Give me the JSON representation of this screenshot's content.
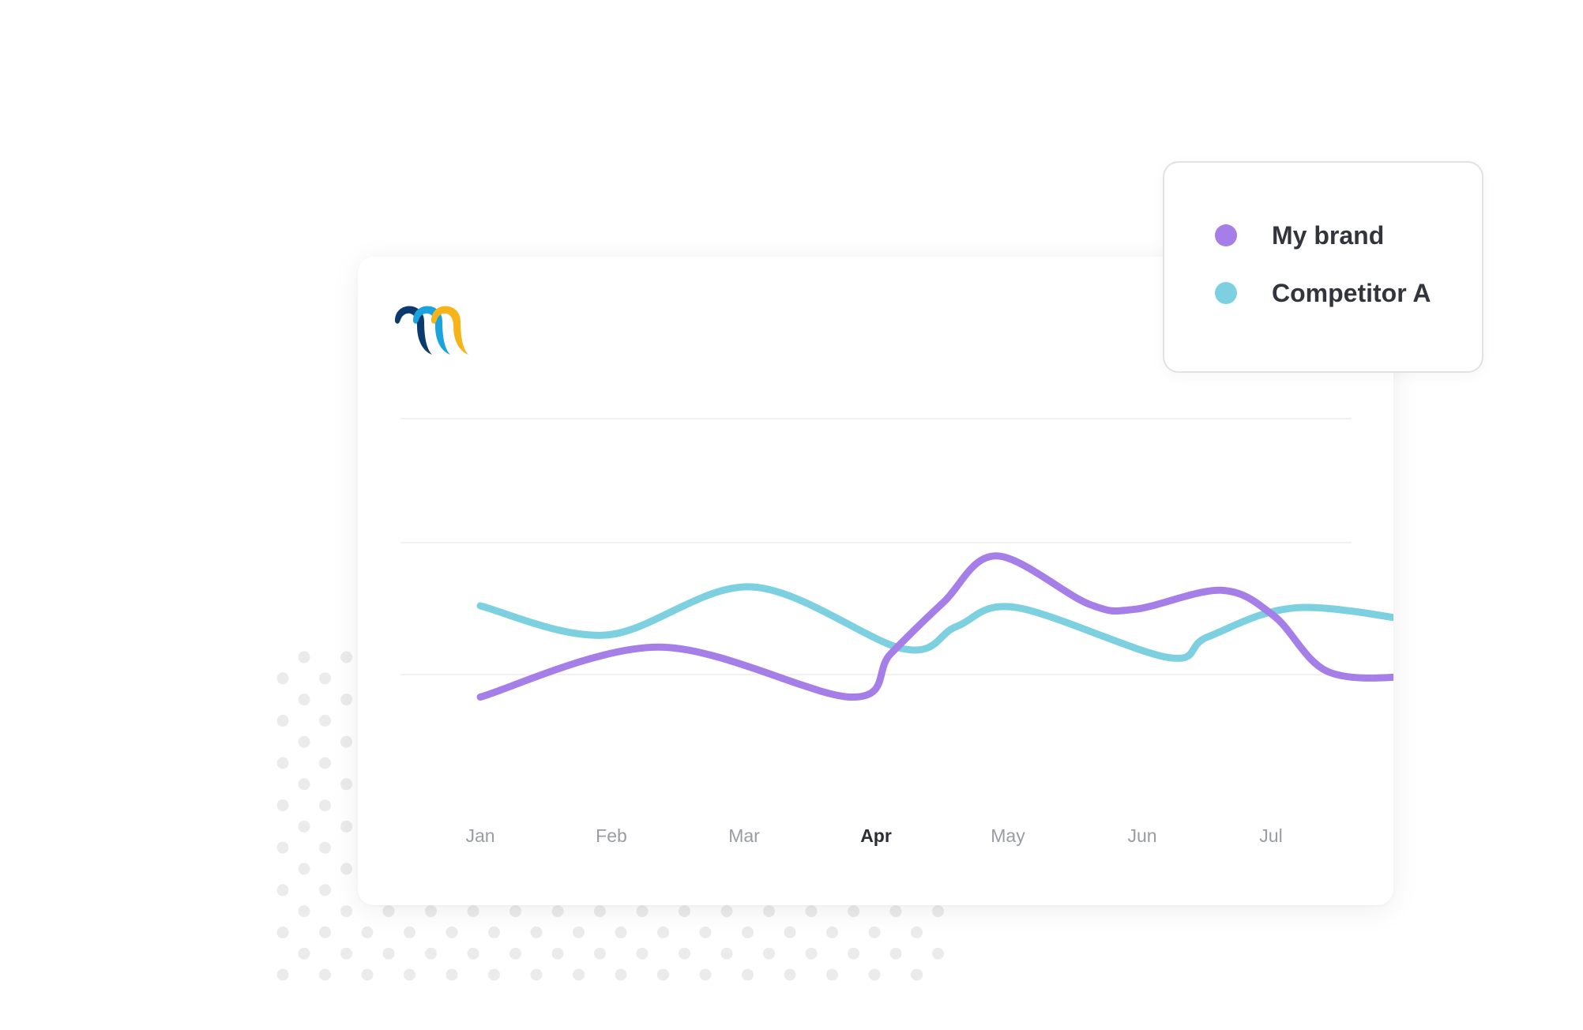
{
  "brand": {
    "logo_colors": [
      "#0d3a6e",
      "#1aa3dc",
      "#f5b41a"
    ]
  },
  "legend": {
    "items": [
      {
        "label": "My brand",
        "color": "#a67ee8"
      },
      {
        "label": "Competitor A",
        "color": "#7dd0e0"
      }
    ]
  },
  "chart_data": {
    "type": "line",
    "title": "",
    "xlabel": "",
    "ylabel": "",
    "categories": [
      "Jan",
      "Feb",
      "Mar",
      "Apr",
      "May",
      "Jun",
      "Jul"
    ],
    "highlighted_category": "Apr",
    "grid": true,
    "gridlines": 3,
    "legend_placement": "top-right",
    "ylim": [
      0,
      100
    ],
    "series": [
      {
        "name": "My brand",
        "color": "#a67ee8",
        "points": [
          {
            "x": 0.0,
            "y": 25
          },
          {
            "x": 1.35,
            "y": 54
          },
          {
            "x": 2.8,
            "y": 25
          },
          {
            "x": 3.1,
            "y": 50
          },
          {
            "x": 3.5,
            "y": 80
          },
          {
            "x": 3.9,
            "y": 107
          },
          {
            "x": 4.6,
            "y": 79
          },
          {
            "x": 4.95,
            "y": 76
          },
          {
            "x": 5.6,
            "y": 87
          },
          {
            "x": 6.0,
            "y": 72
          },
          {
            "x": 6.4,
            "y": 40
          },
          {
            "x": 7.0,
            "y": 37
          },
          {
            "x": 7.3,
            "y": 44
          }
        ]
      },
      {
        "name": "Competitor A",
        "color": "#7dd0e0",
        "points": [
          {
            "x": 0.0,
            "y": 78
          },
          {
            "x": 0.95,
            "y": 61
          },
          {
            "x": 2.05,
            "y": 89
          },
          {
            "x": 3.2,
            "y": 53
          },
          {
            "x": 3.6,
            "y": 66
          },
          {
            "x": 4.05,
            "y": 77
          },
          {
            "x": 5.2,
            "y": 48
          },
          {
            "x": 5.5,
            "y": 60
          },
          {
            "x": 6.2,
            "y": 77
          },
          {
            "x": 7.3,
            "y": 66
          }
        ]
      }
    ]
  }
}
